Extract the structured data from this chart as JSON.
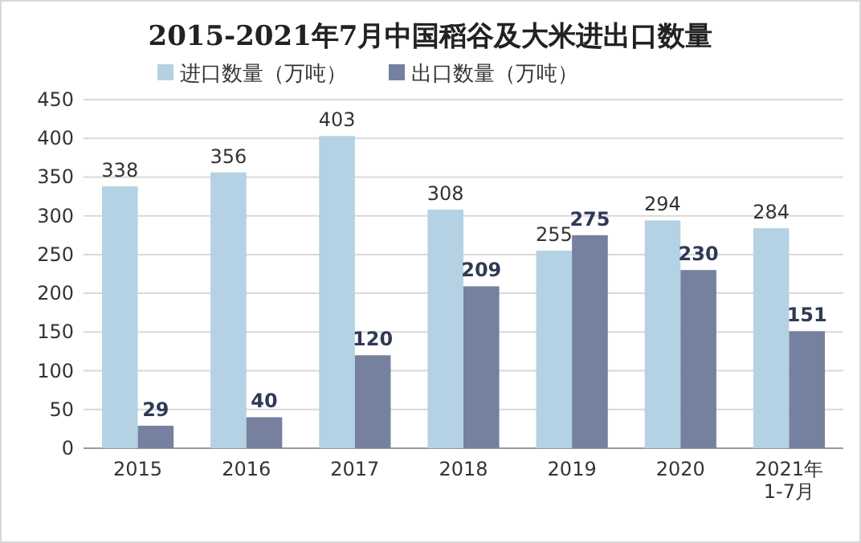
{
  "chart_data": {
    "type": "bar",
    "title": "2015-2021年7月中国稻谷及大米进出口数量",
    "categories": [
      "2015",
      "2016",
      "2017",
      "2018",
      "2019",
      "2020",
      "2021年\n1-7月"
    ],
    "series": [
      {
        "name": "进口数量（万吨）",
        "color": "#b4d2e3",
        "values": [
          338,
          356,
          403,
          308,
          255,
          294,
          284
        ]
      },
      {
        "name": "出口数量（万吨）",
        "color": "#76809f",
        "values": [
          29,
          40,
          120,
          209,
          275,
          230,
          151
        ]
      }
    ],
    "ylim": [
      0,
      450
    ],
    "yticks": [
      0,
      50,
      100,
      150,
      200,
      250,
      300,
      350,
      400,
      450
    ],
    "grid": "y",
    "legend": "top",
    "data_labels": true
  }
}
